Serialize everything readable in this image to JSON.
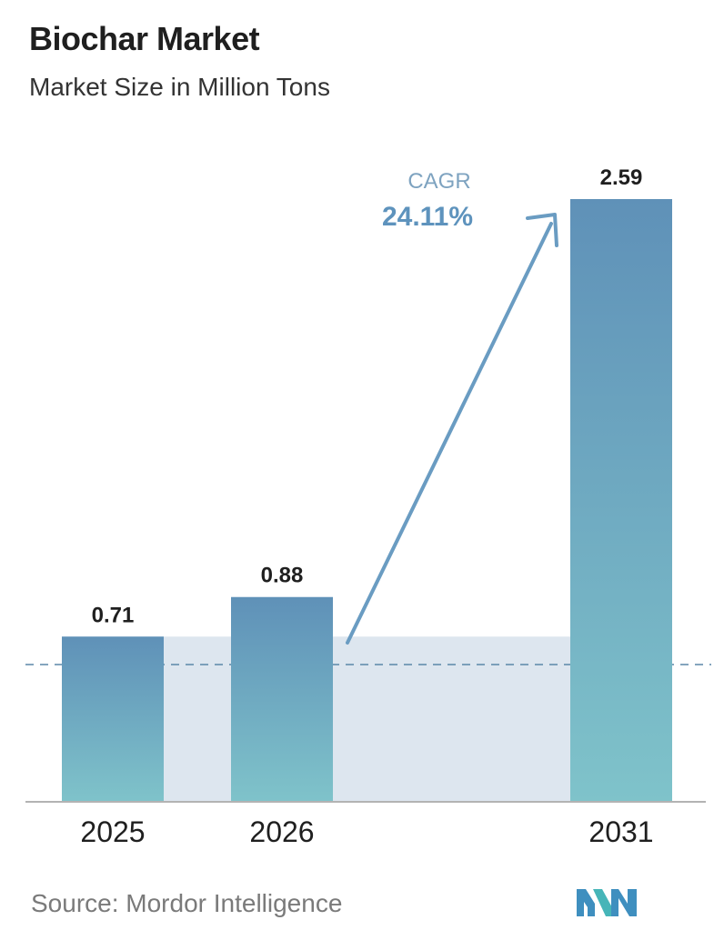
{
  "header": {
    "title": "Biochar Market",
    "subtitle": "Market Size in Million Tons"
  },
  "chart_data": {
    "type": "bar",
    "title": "Biochar Market",
    "subtitle": "Market Size in Million Tons",
    "categories": [
      "2025",
      "2026",
      "2031"
    ],
    "values": [
      0.71,
      0.88,
      2.59
    ],
    "value_labels": [
      "0.71",
      "0.88",
      "2.59"
    ],
    "xlabel": "",
    "ylabel": "",
    "ylim": [
      0,
      2.59
    ],
    "grid": false,
    "annotation": {
      "label": "CAGR",
      "value": "24.11%"
    },
    "colors": {
      "bar_top": "#5f91b8",
      "bar_bottom": "#7fc3ca",
      "shade": "#dde6ef",
      "arrow": "#6a9cc2",
      "baseline_dash": "#5b87a8",
      "cagr_label": "#7ea3c0",
      "cagr_value": "#5e93bd"
    }
  },
  "footer": {
    "source": "Source:  Mordor Intelligence",
    "logo_icon": "mordor-intelligence-logo"
  }
}
